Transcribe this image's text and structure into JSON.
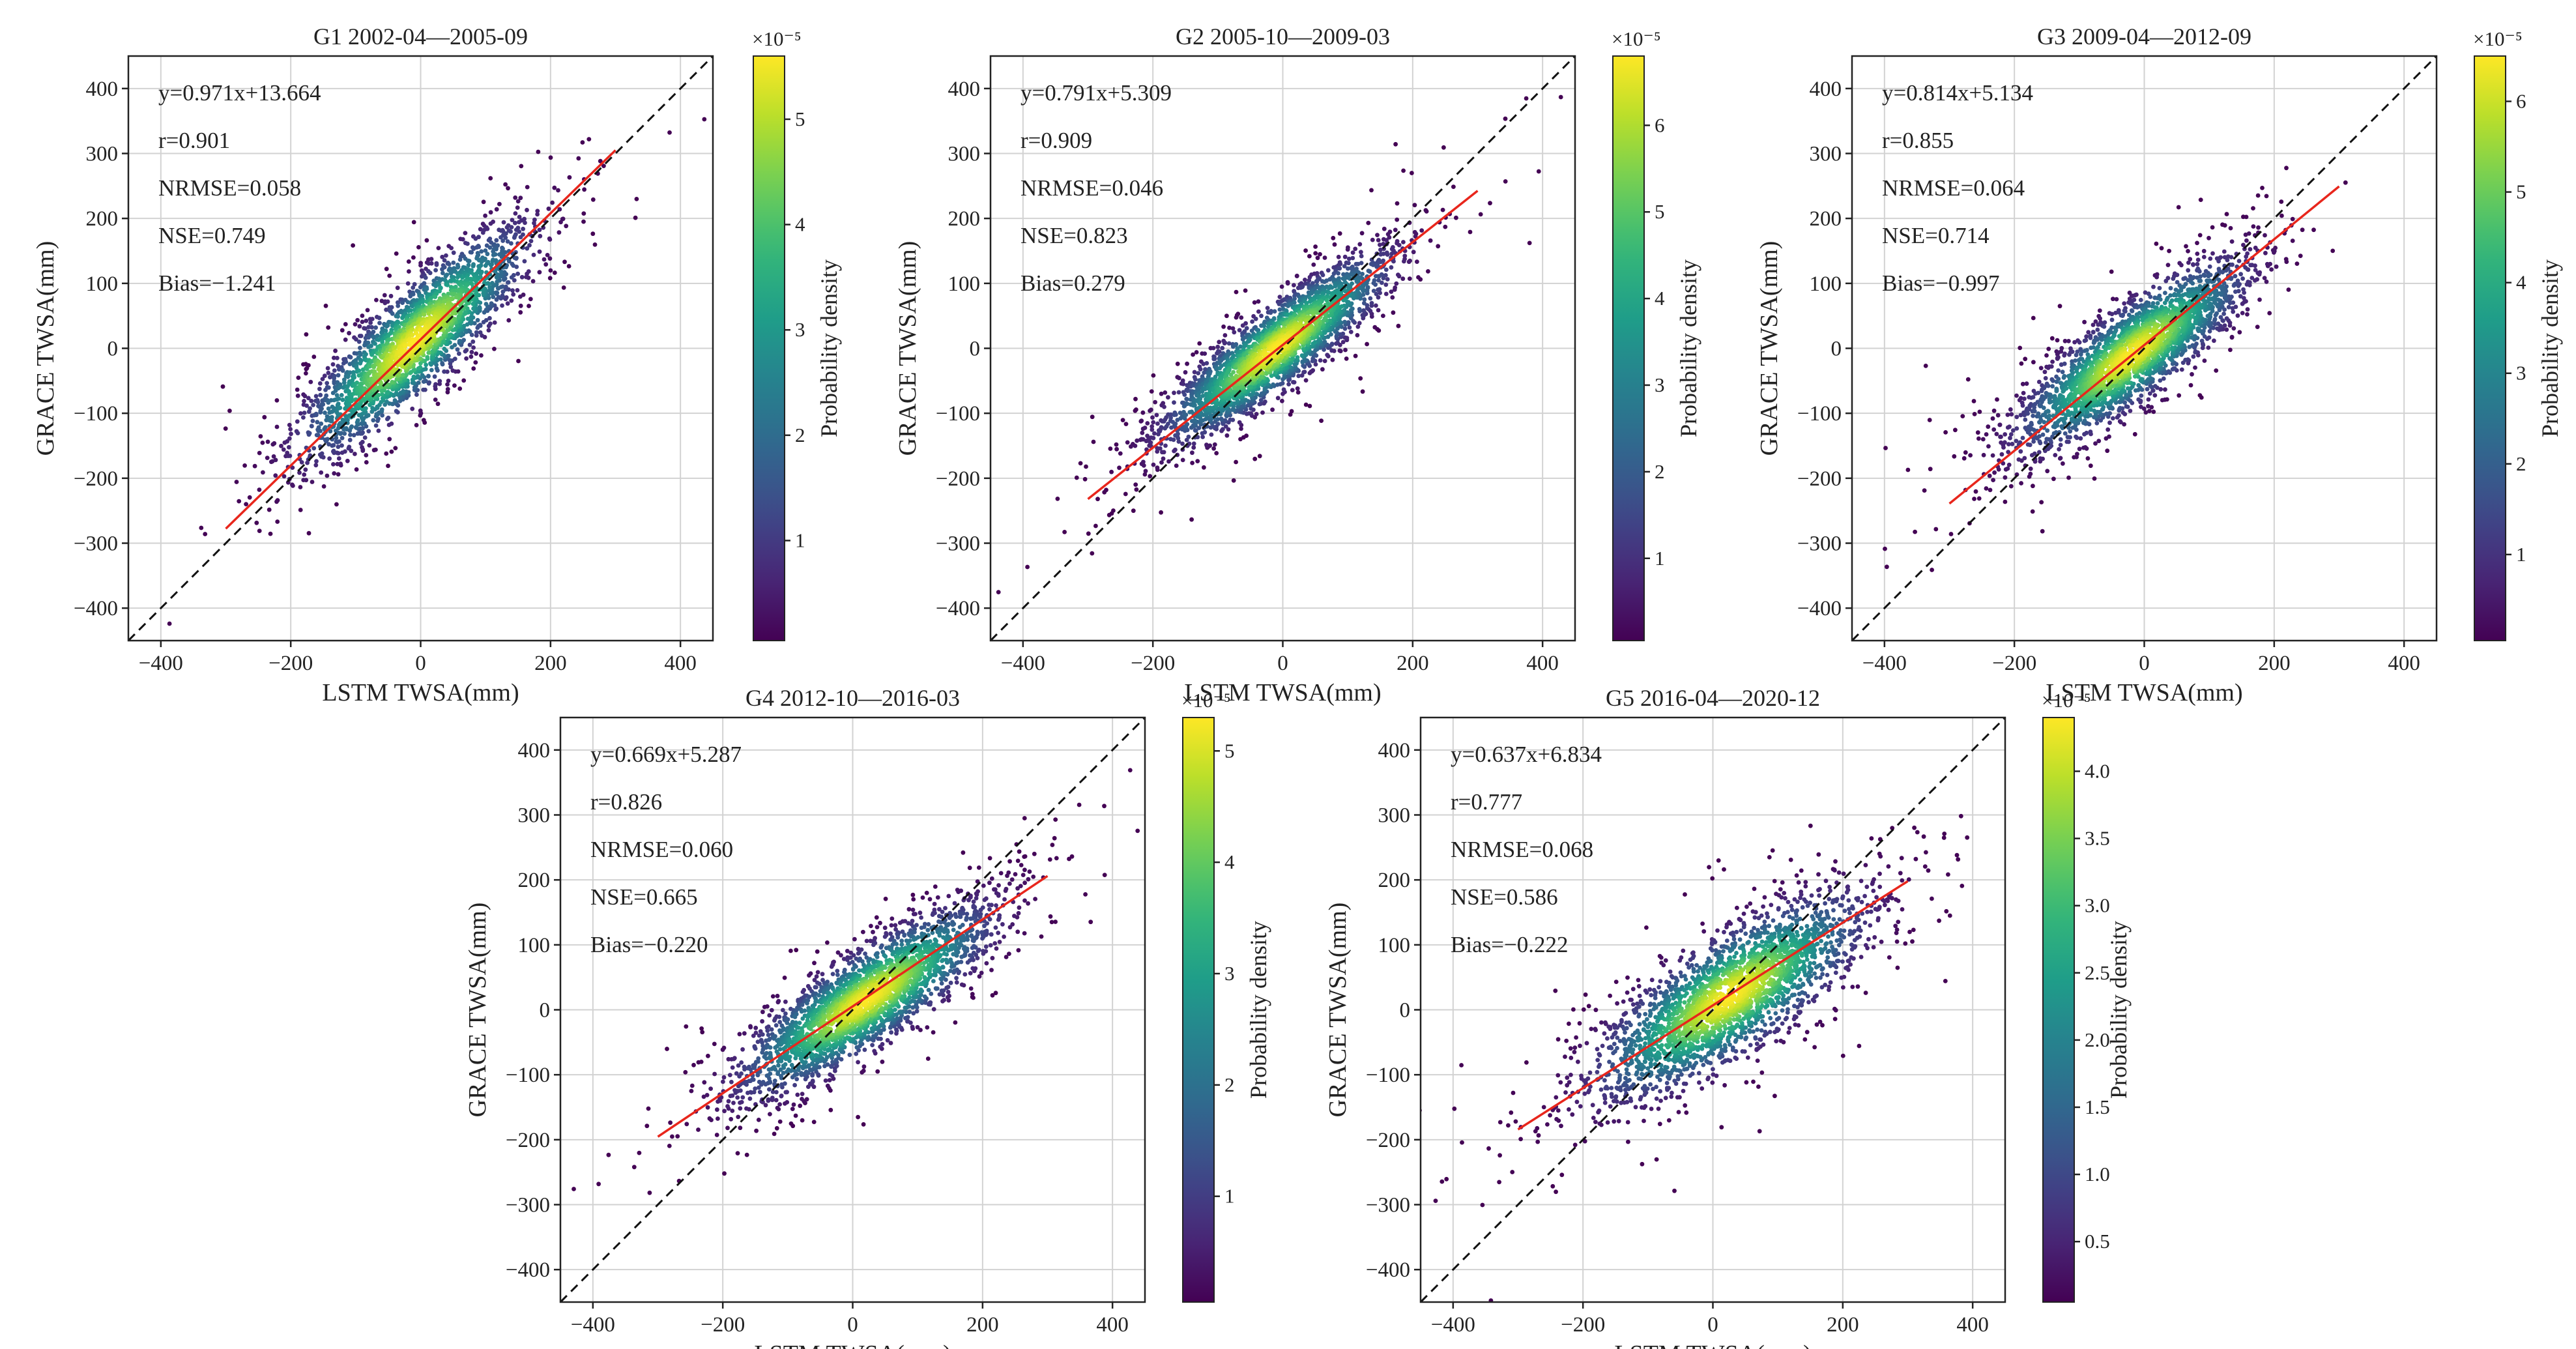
{
  "figure": {
    "xlabel": "LSTM TWSA(mm)",
    "ylabel": "GRACE TWSA(mm)",
    "colorbar_label": "Probability density",
    "colorbar_exponent": "×10⁻⁵",
    "colors": {
      "fit_line": "#e8261c",
      "identity_line": "#111111",
      "grid": "#d2d2d2",
      "cmap": "viridis"
    }
  },
  "chart_data": [
    {
      "type": "scatter",
      "title": "G1 2002-04—2005-09",
      "xlabel": "LSTM TWSA(mm)",
      "ylabel": "GRACE TWSA(mm)",
      "xlim": [
        -450,
        450
      ],
      "ylim": [
        -450,
        450
      ],
      "ticks": [
        -400,
        -200,
        0,
        200,
        400
      ],
      "yticks": [
        -400,
        -300,
        -200,
        -100,
        0,
        100,
        200,
        300,
        400
      ],
      "grid": true,
      "fit": {
        "slope": 0.971,
        "intercept": 13.664,
        "x_range": [
          -300,
          300
        ]
      },
      "stats": [
        "y=0.971x+13.664",
        "r=0.901",
        "NRMSE=0.058",
        "NSE=0.749",
        "Bias=−1.241"
      ],
      "cloud": {
        "cx": -10,
        "cy": 10,
        "sx": 85,
        "sy": 85,
        "rho": 0.86,
        "n": 2600
      },
      "colorbar": {
        "range": [
          0.05,
          5.6
        ],
        "ticks": [
          1,
          2,
          3,
          4,
          5
        ]
      }
    },
    {
      "type": "scatter",
      "title": "G2 2005-10—2009-03",
      "xlabel": "LSTM TWSA(mm)",
      "ylabel": "GRACE TWSA(mm)",
      "xlim": [
        -450,
        450
      ],
      "ylim": [
        -450,
        450
      ],
      "ticks": [
        -400,
        -200,
        0,
        200,
        400
      ],
      "yticks": [
        -400,
        -300,
        -200,
        -100,
        0,
        100,
        200,
        300,
        400
      ],
      "grid": true,
      "fit": {
        "slope": 0.791,
        "intercept": 5.309,
        "x_range": [
          -300,
          300
        ]
      },
      "stats": [
        "y=0.791x+5.309",
        "r=0.909",
        "NRMSE=0.046",
        "NSE=0.823",
        "Bias=0.279"
      ],
      "cloud": {
        "cx": -10,
        "cy": 0,
        "sx": 85,
        "sy": 70,
        "rho": 0.88,
        "n": 2800
      },
      "colorbar": {
        "range": [
          0.05,
          6.8
        ],
        "ticks": [
          1,
          2,
          3,
          4,
          5,
          6
        ]
      }
    },
    {
      "type": "scatter",
      "title": "G3 2009-04—2012-09",
      "xlabel": "LSTM TWSA(mm)",
      "ylabel": "GRACE TWSA(mm)",
      "xlim": [
        -450,
        450
      ],
      "ylim": [
        -450,
        450
      ],
      "ticks": [
        -400,
        -200,
        0,
        200,
        400
      ],
      "yticks": [
        -400,
        -300,
        -200,
        -100,
        0,
        100,
        200,
        300,
        400
      ],
      "grid": true,
      "fit": {
        "slope": 0.814,
        "intercept": 5.134,
        "x_range": [
          -300,
          300
        ]
      },
      "stats": [
        "y=0.814x+5.134",
        "r=0.855",
        "NRMSE=0.064",
        "NSE=0.714",
        "Bias=−0.997"
      ],
      "cloud": {
        "cx": -20,
        "cy": -10,
        "sx": 85,
        "sy": 70,
        "rho": 0.84,
        "n": 2800
      },
      "colorbar": {
        "range": [
          0.05,
          6.5
        ],
        "ticks": [
          1,
          2,
          3,
          4,
          5,
          6
        ]
      }
    },
    {
      "type": "scatter",
      "title": "G4 2012-10—2016-03",
      "xlabel": "LSTM TWSA(mm)",
      "ylabel": "GRACE TWSA(mm)",
      "xlim": [
        -450,
        450
      ],
      "ylim": [
        -450,
        450
      ],
      "ticks": [
        -400,
        -200,
        0,
        200,
        400
      ],
      "yticks": [
        -400,
        -300,
        -200,
        -100,
        0,
        100,
        200,
        300,
        400
      ],
      "grid": true,
      "fit": {
        "slope": 0.669,
        "intercept": 5.287,
        "x_range": [
          -300,
          300
        ]
      },
      "stats": [
        "y=0.669x+5.287",
        "r=0.826",
        "NRMSE=0.060",
        "NSE=0.665",
        "Bias=−0.220"
      ],
      "cloud": {
        "cx": 20,
        "cy": 15,
        "sx": 95,
        "sy": 70,
        "rho": 0.84,
        "n": 2800
      },
      "colorbar": {
        "range": [
          0.05,
          5.3
        ],
        "ticks": [
          1,
          2,
          3,
          4,
          5
        ]
      }
    },
    {
      "type": "scatter",
      "title": "G5 2016-04—2020-12",
      "xlabel": "LSTM TWSA(mm)",
      "ylabel": "GRACE TWSA(mm)",
      "xlim": [
        -450,
        450
      ],
      "ylim": [
        -450,
        450
      ],
      "ticks": [
        -400,
        -200,
        0,
        200,
        400
      ],
      "yticks": [
        -400,
        -300,
        -200,
        -100,
        0,
        100,
        200,
        300,
        400
      ],
      "grid": true,
      "fit": {
        "slope": 0.637,
        "intercept": 6.834,
        "x_range": [
          -300,
          300
        ]
      },
      "stats": [
        "y=0.637x+6.834",
        "r=0.777",
        "NRMSE=0.068",
        "NSE=0.586",
        "Bias=−0.222"
      ],
      "cloud": {
        "cx": 25,
        "cy": 20,
        "sx": 100,
        "sy": 75,
        "rho": 0.78,
        "n": 2800
      },
      "colorbar": {
        "range": [
          0.05,
          4.4
        ],
        "ticks": [
          0.5,
          1.0,
          1.5,
          2.0,
          2.5,
          3.0,
          3.5,
          4.0
        ]
      }
    }
  ]
}
